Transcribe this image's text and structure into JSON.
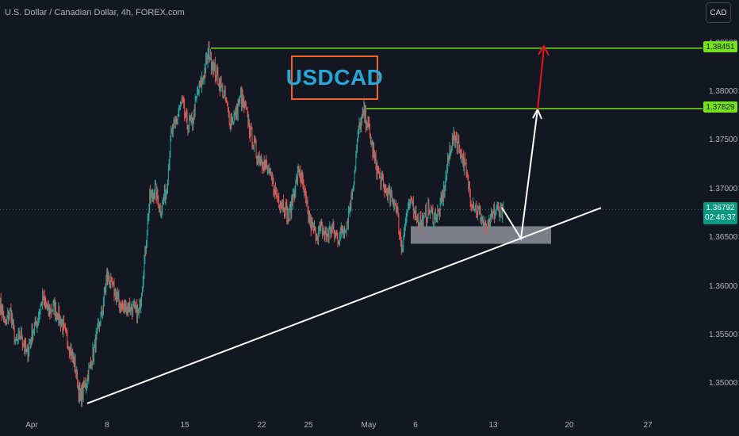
{
  "header": {
    "symbol_title": "U.S. Dollar / Canadian Dollar, 4h, FOREX.com"
  },
  "toolbar": {
    "currency_label": "CAD"
  },
  "annotation": {
    "ticker_label": "USDCAD"
  },
  "levels": {
    "upper_label": "1.38451",
    "middle_label": "1.37829",
    "upper_value": 1.38451,
    "middle_value": 1.37829
  },
  "current": {
    "price": "1.36792",
    "countdown": "02:46:37",
    "value": 1.36792
  },
  "colors": {
    "background": "#131722",
    "up": "#26a69a",
    "down": "#ef5350",
    "level": "#76e31a",
    "trendline": "#ffffff",
    "target_arrow": "#e01919",
    "box_border": "#f0632a",
    "ticker_text": "#28a6d8"
  },
  "chart_data": {
    "type": "candlestick",
    "title": "U.S. Dollar / Canadian Dollar, 4h, FOREX.com",
    "y_ticks": [
      "1.38500",
      "1.38000",
      "1.37500",
      "1.37000",
      "1.36500",
      "1.36000",
      "1.35500",
      "1.35000"
    ],
    "y_tick_values": [
      1.385,
      1.38,
      1.375,
      1.37,
      1.365,
      1.36,
      1.355,
      1.35
    ],
    "x_ticks": [
      "Apr",
      "8",
      "15",
      "22",
      "25",
      "May",
      "6",
      "13",
      "20",
      "27"
    ],
    "ylim": [
      1.3475,
      1.3875
    ],
    "support_zone": [
      1.3644,
      1.3662
    ],
    "trendline": {
      "from": 1.348,
      "to": 1.3681
    },
    "path_points": [
      1.3585,
      1.356,
      1.3575,
      1.354,
      1.3552,
      1.353,
      1.355,
      1.3565,
      1.3588,
      1.3575,
      1.3578,
      1.3572,
      1.3555,
      1.354,
      1.352,
      1.3485,
      1.35,
      1.352,
      1.3545,
      1.357,
      1.361,
      1.36,
      1.3588,
      1.3578,
      1.358,
      1.3575,
      1.3572,
      1.3625,
      1.369,
      1.37,
      1.368,
      1.3695,
      1.3755,
      1.377,
      1.379,
      1.3765,
      1.377,
      1.38,
      1.3815,
      1.384,
      1.3825,
      1.381,
      1.3795,
      1.377,
      1.3775,
      1.3795,
      1.378,
      1.3755,
      1.3735,
      1.373,
      1.372,
      1.3705,
      1.369,
      1.3685,
      1.367,
      1.37,
      1.372,
      1.369,
      1.3665,
      1.3655,
      1.3658,
      1.3652,
      1.366,
      1.365,
      1.3656,
      1.367,
      1.3705,
      1.376,
      1.378,
      1.376,
      1.373,
      1.371,
      1.37,
      1.369,
      1.3685,
      1.364,
      1.3675,
      1.3688,
      1.367,
      1.3665,
      1.368,
      1.3672,
      1.3675,
      1.37,
      1.374,
      1.3755,
      1.374,
      1.372,
      1.369,
      1.368,
      1.367,
      1.3655,
      1.3672,
      1.368,
      1.3679
    ]
  }
}
